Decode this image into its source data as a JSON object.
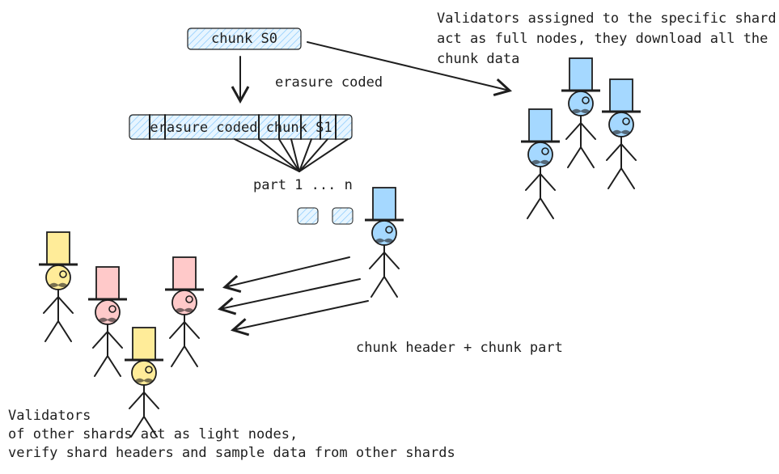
{
  "chunk_s0": "chunk S0",
  "edge_label": "erasure coded",
  "encoded_chunk": "erasure coded chunk S1",
  "parts_label": "part 1 ... n",
  "transfer_label": "chunk header + chunk part",
  "full_nodes_note": [
    "Validators assigned to the specific shard",
    "act as full nodes, they download all the",
    "chunk data"
  ],
  "light_nodes_note": [
    "Validators",
    "of other shards act as light nodes,",
    "verify shard headers and sample data from other shards"
  ]
}
